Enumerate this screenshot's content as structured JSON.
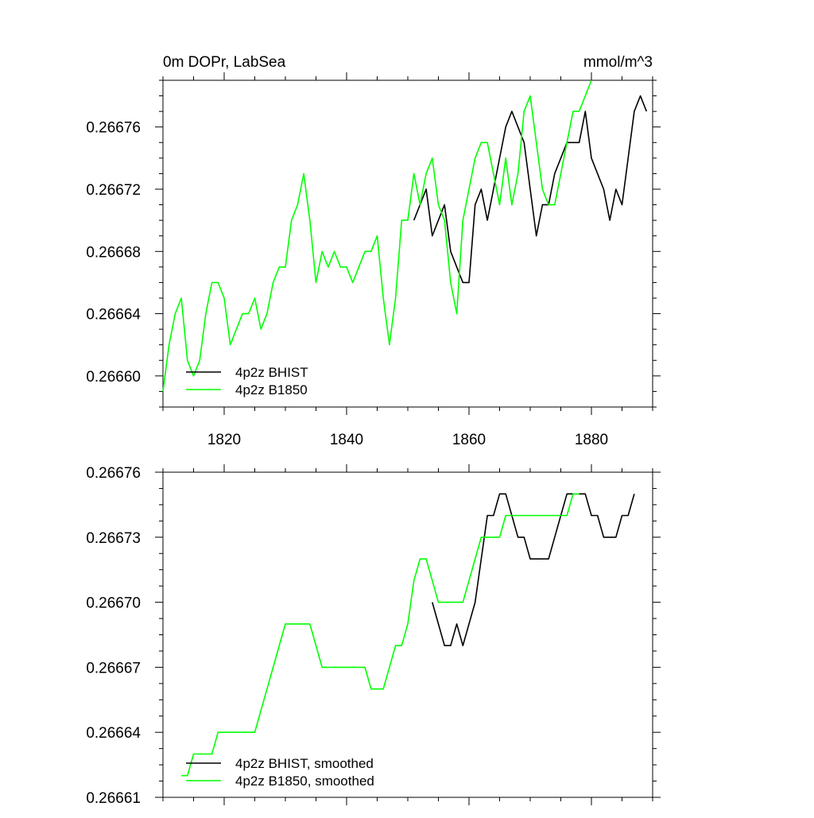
{
  "colors": {
    "bhist": "#000000",
    "b1850": "#00ff00",
    "axes": "#000000",
    "background": "#ffffff"
  },
  "chart_data": [
    {
      "type": "line",
      "title": "0m DOPr, LabSea",
      "units": "mmol/m^3",
      "xlim": [
        1810,
        1890
      ],
      "ylim": [
        0.26658,
        0.26679
      ],
      "x_ticks": [
        1820,
        1840,
        1860,
        1880
      ],
      "x_tick_labels": [
        "1820",
        "1840",
        "1860",
        "1880"
      ],
      "y_ticks": [
        0.2666,
        0.26664,
        0.26668,
        0.26672,
        0.26676
      ],
      "y_tick_labels": [
        "0.26660",
        "0.26664",
        "0.26668",
        "0.26672",
        "0.26676"
      ],
      "legend": "bottom-left",
      "series": [
        {
          "name": "4p2z BHIST",
          "color": "#000000",
          "x": [
            1851,
            1852,
            1853,
            1854,
            1855,
            1856,
            1857,
            1858,
            1859,
            1860,
            1861,
            1862,
            1863,
            1864,
            1865,
            1866,
            1867,
            1868,
            1869,
            1870,
            1871,
            1872,
            1873,
            1874,
            1875,
            1876,
            1877,
            1878,
            1879,
            1880,
            1881,
            1882,
            1883,
            1884,
            1885,
            1886,
            1887,
            1888,
            1889
          ],
          "values": [
            0.2667,
            0.26671,
            0.26672,
            0.26669,
            0.2667,
            0.26671,
            0.26668,
            0.26667,
            0.26666,
            0.26666,
            0.26671,
            0.26672,
            0.2667,
            0.26672,
            0.26674,
            0.26676,
            0.26677,
            0.26676,
            0.26675,
            0.26672,
            0.26669,
            0.26671,
            0.26671,
            0.26673,
            0.26674,
            0.26675,
            0.26675,
            0.26675,
            0.26677,
            0.26674,
            0.26673,
            0.26672,
            0.2667,
            0.26672,
            0.26671,
            0.26674,
            0.26677,
            0.26678,
            0.26677
          ]
        },
        {
          "name": "4p2z B1850",
          "color": "#00ff00",
          "x": [
            1810,
            1811,
            1812,
            1813,
            1814,
            1815,
            1816,
            1817,
            1818,
            1819,
            1820,
            1821,
            1822,
            1823,
            1824,
            1825,
            1826,
            1827,
            1828,
            1829,
            1830,
            1831,
            1832,
            1833,
            1834,
            1835,
            1836,
            1837,
            1838,
            1839,
            1840,
            1841,
            1842,
            1843,
            1844,
            1845,
            1846,
            1847,
            1848,
            1849,
            1850,
            1851,
            1852,
            1853,
            1854,
            1855,
            1856,
            1857,
            1858,
            1859,
            1860,
            1861,
            1862,
            1863,
            1864,
            1865,
            1866,
            1867,
            1868,
            1869,
            1870,
            1871,
            1872,
            1873,
            1874,
            1875,
            1876,
            1877,
            1878,
            1879,
            1880
          ],
          "values": [
            0.26659,
            0.26662,
            0.26664,
            0.26665,
            0.26661,
            0.2666,
            0.26661,
            0.26664,
            0.26666,
            0.26666,
            0.26665,
            0.26662,
            0.26663,
            0.26664,
            0.26664,
            0.26665,
            0.26663,
            0.26664,
            0.26666,
            0.26667,
            0.26667,
            0.2667,
            0.26671,
            0.26673,
            0.2667,
            0.26666,
            0.26668,
            0.26667,
            0.26668,
            0.26667,
            0.26667,
            0.26666,
            0.26667,
            0.26668,
            0.26668,
            0.26669,
            0.26665,
            0.26662,
            0.26665,
            0.2667,
            0.2667,
            0.26673,
            0.26671,
            0.26673,
            0.26674,
            0.26671,
            0.2667,
            0.26666,
            0.26664,
            0.2667,
            0.26672,
            0.26674,
            0.26675,
            0.26675,
            0.26673,
            0.26671,
            0.26674,
            0.26671,
            0.26673,
            0.26677,
            0.26678,
            0.26675,
            0.26672,
            0.26671,
            0.26671,
            0.26673,
            0.26675,
            0.26677,
            0.26677,
            0.26678,
            0.26679
          ]
        }
      ]
    },
    {
      "type": "line",
      "title": "",
      "xlim": [
        1810,
        1890
      ],
      "ylim": [
        0.26661,
        0.26676
      ],
      "x_ticks": [
        1820,
        1840,
        1860,
        1880
      ],
      "x_tick_labels": [],
      "y_ticks": [
        0.26661,
        0.26664,
        0.26667,
        0.2667,
        0.26673,
        0.26676
      ],
      "y_tick_labels": [
        "0.26661",
        "0.26664",
        "0.26667",
        "0.26670",
        "0.26673",
        "0.26676"
      ],
      "legend": "bottom-left",
      "series": [
        {
          "name": "4p2z BHIST, smoothed",
          "color": "#000000",
          "x": [
            1854,
            1855,
            1856,
            1857,
            1858,
            1859,
            1860,
            1861,
            1862,
            1863,
            1864,
            1865,
            1866,
            1867,
            1868,
            1869,
            1870,
            1871,
            1872,
            1873,
            1874,
            1875,
            1876,
            1877,
            1878,
            1879,
            1880,
            1881,
            1882,
            1883,
            1884,
            1885,
            1886,
            1887
          ],
          "values": [
            0.2667,
            0.26669,
            0.26668,
            0.26668,
            0.26669,
            0.26668,
            0.26669,
            0.2667,
            0.26672,
            0.26674,
            0.26674,
            0.26675,
            0.26675,
            0.26674,
            0.26673,
            0.26673,
            0.26672,
            0.26672,
            0.26672,
            0.26672,
            0.26673,
            0.26674,
            0.26675,
            0.26675,
            0.26675,
            0.26675,
            0.26674,
            0.26674,
            0.26673,
            0.26673,
            0.26673,
            0.26674,
            0.26674,
            0.26675
          ]
        },
        {
          "name": "4p2z B1850, smoothed",
          "color": "#00ff00",
          "x": [
            1813,
            1814,
            1815,
            1816,
            1817,
            1818,
            1819,
            1820,
            1821,
            1822,
            1823,
            1824,
            1825,
            1826,
            1827,
            1828,
            1829,
            1830,
            1831,
            1832,
            1833,
            1834,
            1835,
            1836,
            1837,
            1838,
            1839,
            1840,
            1841,
            1842,
            1843,
            1844,
            1845,
            1846,
            1847,
            1848,
            1849,
            1850,
            1851,
            1852,
            1853,
            1854,
            1855,
            1856,
            1857,
            1858,
            1859,
            1860,
            1861,
            1862,
            1863,
            1864,
            1865,
            1866,
            1867,
            1868,
            1869,
            1870,
            1871,
            1872,
            1873,
            1874,
            1875,
            1876,
            1877,
            1878
          ],
          "values": [
            0.26662,
            0.26662,
            0.26663,
            0.26663,
            0.26663,
            0.26663,
            0.26664,
            0.26664,
            0.26664,
            0.26664,
            0.26664,
            0.26664,
            0.26664,
            0.26665,
            0.26666,
            0.26667,
            0.26668,
            0.26669,
            0.26669,
            0.26669,
            0.26669,
            0.26669,
            0.26668,
            0.26667,
            0.26667,
            0.26667,
            0.26667,
            0.26667,
            0.26667,
            0.26667,
            0.26667,
            0.26666,
            0.26666,
            0.26666,
            0.26667,
            0.26668,
            0.26668,
            0.26669,
            0.26671,
            0.26672,
            0.26672,
            0.26671,
            0.2667,
            0.2667,
            0.2667,
            0.2667,
            0.2667,
            0.26671,
            0.26672,
            0.26673,
            0.26673,
            0.26673,
            0.26673,
            0.26674,
            0.26674,
            0.26674,
            0.26674,
            0.26674,
            0.26674,
            0.26674,
            0.26674,
            0.26674,
            0.26674,
            0.26674,
            0.26675,
            0.26675
          ]
        }
      ]
    }
  ]
}
